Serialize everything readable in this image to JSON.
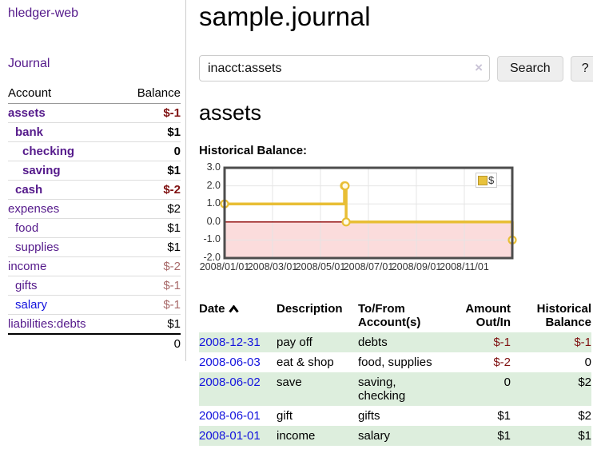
{
  "sidebar": {
    "brand": "hledger-web",
    "journal_link": "Journal",
    "accounts": {
      "col_account": "Account",
      "col_balance": "Balance",
      "rows": [
        {
          "name": "assets",
          "indent": 0,
          "bold": true,
          "balance": "$-1",
          "neg": "strong",
          "link_color": "purple"
        },
        {
          "name": "bank",
          "indent": 1,
          "bold": true,
          "balance": "$1",
          "neg": null,
          "link_color": "purple"
        },
        {
          "name": "checking",
          "indent": 2,
          "bold": true,
          "balance": "0",
          "neg": null,
          "link_color": "purple"
        },
        {
          "name": "saving",
          "indent": 2,
          "bold": true,
          "balance": "$1",
          "neg": null,
          "link_color": "purple"
        },
        {
          "name": "cash",
          "indent": 1,
          "bold": true,
          "balance": "$-2",
          "neg": "strong",
          "link_color": "purple"
        },
        {
          "name": "expenses",
          "indent": 0,
          "bold": false,
          "balance": "$2",
          "neg": null,
          "link_color": "purple"
        },
        {
          "name": "food",
          "indent": 1,
          "bold": false,
          "balance": "$1",
          "neg": null,
          "link_color": "purple"
        },
        {
          "name": "supplies",
          "indent": 1,
          "bold": false,
          "balance": "$1",
          "neg": null,
          "link_color": "purple"
        },
        {
          "name": "income",
          "indent": 0,
          "bold": false,
          "balance": "$-2",
          "neg": "soft",
          "link_color": "purple"
        },
        {
          "name": "gifts",
          "indent": 1,
          "bold": false,
          "balance": "$-1",
          "neg": "soft",
          "link_color": "purple"
        },
        {
          "name": "salary",
          "indent": 1,
          "bold": false,
          "balance": "$-1",
          "neg": "soft",
          "link_color": "blue"
        },
        {
          "name": "liabilities:debts",
          "indent": 0,
          "bold": false,
          "balance": "$1",
          "neg": null,
          "link_color": "purple"
        }
      ],
      "total": "0"
    }
  },
  "header": {
    "title": "sample.journal"
  },
  "search": {
    "query": "inacct:assets",
    "clear_icon": "×",
    "search_button": "Search",
    "help_button": "?"
  },
  "account_page": {
    "heading": "assets",
    "chart_label": "Historical Balance:"
  },
  "chart_data": {
    "type": "line",
    "title": "Historical Balance:",
    "step": true,
    "legend": [
      {
        "label": "$",
        "color": "#e8c23c"
      }
    ],
    "legend_position": "top-right",
    "ylim": [
      -2,
      3
    ],
    "y_ticks": [
      "3.0",
      "2.0",
      "1.0",
      "0.0",
      "-1.0",
      "-2.0"
    ],
    "y_tick_values": [
      3,
      2,
      1,
      0,
      -1,
      -2
    ],
    "x_range_months": [
      0,
      12
    ],
    "x_tick_labels": [
      "2008/01/01",
      "2008/03/01",
      "2008/05/01",
      "2008/07/01",
      "2008/09/01",
      "2008/11/01"
    ],
    "x_tick_months": [
      0,
      2,
      4,
      6,
      8,
      10
    ],
    "points": [
      {
        "date": "2008-01-01",
        "m": 0,
        "value": 1
      },
      {
        "date": "2008-06-01",
        "m": 5.0,
        "value": 2
      },
      {
        "date": "2008-06-02",
        "m": 5.03,
        "value": 2
      },
      {
        "date": "2008-06-03",
        "m": 5.07,
        "value": 0
      },
      {
        "date": "2008-12-31",
        "m": 12,
        "value": -1
      }
    ],
    "line_color": "#e8be35",
    "marker_fill": "#fffbe8",
    "negative_region_fill": "#fbdcdc",
    "zero_line_color": "#8b0000",
    "grid_color": "#e5e5e5",
    "border_color": "#4d4d4d",
    "grid": true
  },
  "register": {
    "col_date": "Date",
    "sort_direction": "ascending",
    "col_description": "Description",
    "col_accounts": "To/From Account(s)",
    "col_amount": "Amount Out/In",
    "col_balance": "Historical Balance",
    "rows": [
      {
        "date": "2008-12-31",
        "description": "pay off",
        "accounts": "debts",
        "amount": "$-1",
        "amount_neg": true,
        "balance": "$-1",
        "balance_neg": true
      },
      {
        "date": "2008-06-03",
        "description": "eat & shop",
        "accounts": "food, supplies",
        "amount": "$-2",
        "amount_neg": true,
        "balance": "0",
        "balance_neg": false
      },
      {
        "date": "2008-06-02",
        "description": "save",
        "accounts": "saving, checking",
        "amount": "0",
        "amount_neg": false,
        "balance": "$2",
        "balance_neg": false
      },
      {
        "date": "2008-06-01",
        "description": "gift",
        "accounts": "gifts",
        "amount": "$1",
        "amount_neg": false,
        "balance": "$2",
        "balance_neg": false
      },
      {
        "date": "2008-01-01",
        "description": "income",
        "accounts": "salary",
        "amount": "$1",
        "amount_neg": false,
        "balance": "$1",
        "balance_neg": false
      }
    ]
  },
  "colors": {
    "link_purple": "#551a8b",
    "link_blue": "#1414dd",
    "negative_strong": "#7f1111",
    "negative_soft": "#a86a6a",
    "row_green": "#ddeedd",
    "chart_gold": "#e8be35"
  }
}
